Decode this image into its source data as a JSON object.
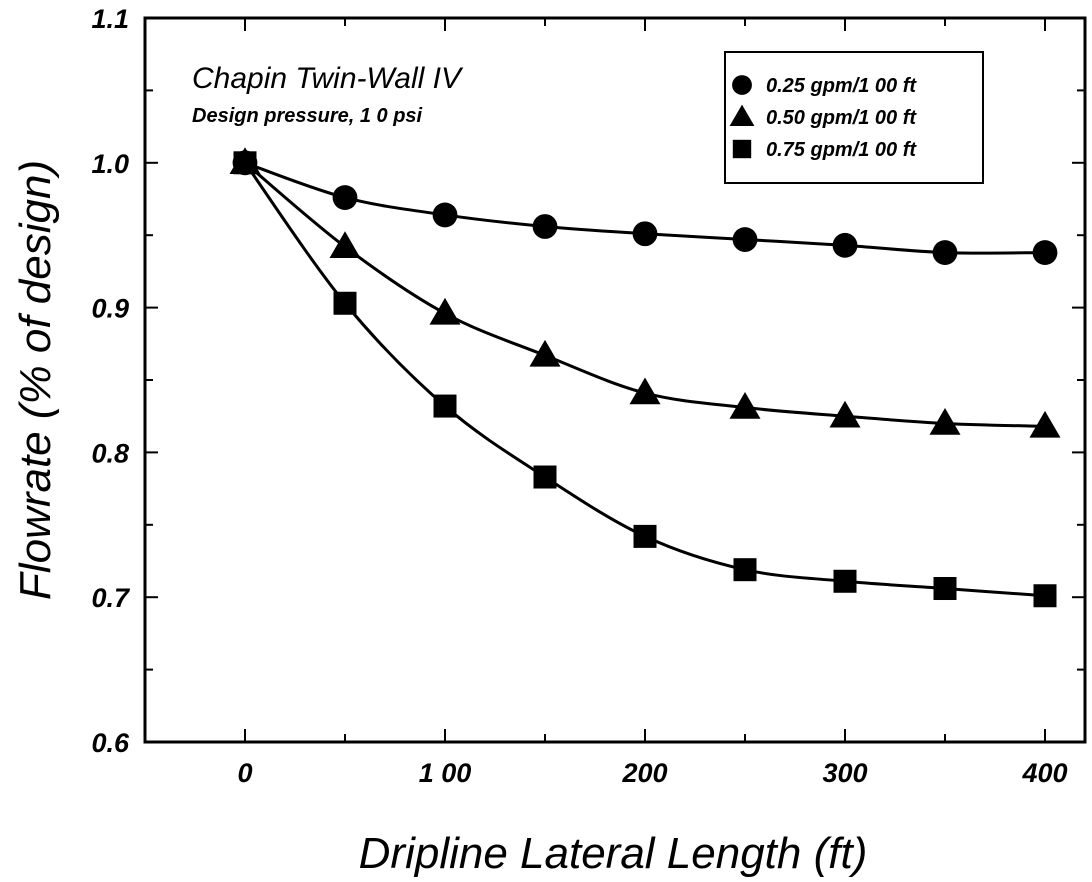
{
  "chart_data": {
    "type": "line",
    "title": "",
    "annotation": {
      "title": "Chapin Twin-Wall IV",
      "subtitle": "Design pressure, 1 0 psi"
    },
    "xlabel": "Dripline Lateral Length (ft)",
    "ylabel": "Flowrate (% of design)",
    "xlim": [
      -50,
      420
    ],
    "ylim": [
      0.6,
      1.1
    ],
    "x_ticks": [
      0,
      100,
      200,
      300,
      400
    ],
    "x_tick_labels": [
      "0",
      "1 00",
      "200",
      "300",
      "400"
    ],
    "x_minor_ticks": [
      50,
      150,
      250,
      350
    ],
    "y_ticks": [
      0.6,
      0.7,
      0.8,
      0.9,
      1.0,
      1.1
    ],
    "y_tick_labels": [
      "0.6",
      "0.7",
      "0.8",
      "0.9",
      "1.0",
      "1.1"
    ],
    "y_minor_ticks": [
      0.65,
      0.75,
      0.85,
      0.95,
      1.05
    ],
    "grid": false,
    "legend_position": "top-right",
    "x": [
      0,
      50,
      100,
      150,
      200,
      250,
      300,
      350,
      400
    ],
    "series": [
      {
        "name": "0.25 gpm/1 00 ft",
        "marker": "circle",
        "values": [
          1.0,
          0.976,
          0.964,
          0.956,
          0.951,
          0.947,
          0.943,
          0.938,
          0.938
        ]
      },
      {
        "name": "0.50 gpm/1 00 ft",
        "marker": "triangle",
        "values": [
          1.0,
          0.942,
          0.896,
          0.867,
          0.841,
          0.831,
          0.825,
          0.82,
          0.818
        ]
      },
      {
        "name": "0.75 gpm/1 00 ft",
        "marker": "square",
        "values": [
          1.0,
          0.903,
          0.832,
          0.783,
          0.742,
          0.719,
          0.711,
          0.706,
          0.701
        ]
      }
    ],
    "colors": {
      "line": "#000000",
      "background": "#ffffff"
    }
  }
}
